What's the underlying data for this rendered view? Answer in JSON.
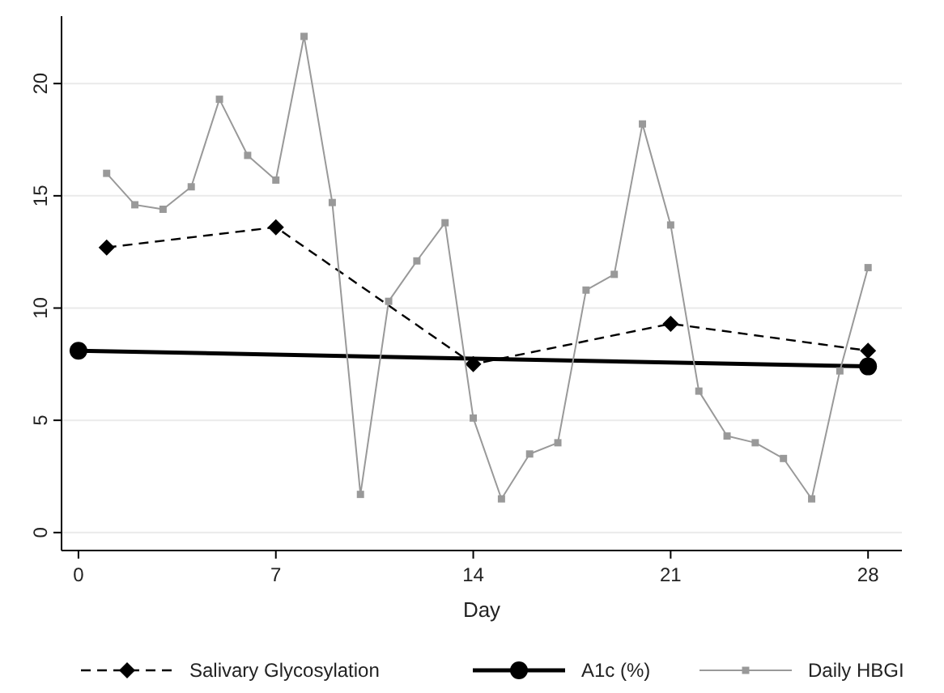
{
  "chart_data": {
    "type": "line",
    "xlabel": "Day",
    "xlim": [
      -0.6,
      29.2
    ],
    "xticks": [
      0,
      7,
      14,
      21,
      28
    ],
    "ylim": [
      -0.8,
      23
    ],
    "yticks": [
      0,
      5,
      10,
      15,
      20
    ],
    "grid": "y",
    "legend": "bottom",
    "series": [
      {
        "name": "Salivary Glycosylation",
        "color": "#000000",
        "marker": "diamond",
        "line_style": "dashed",
        "x": [
          1,
          7,
          14,
          21,
          28
        ],
        "values": [
          12.7,
          13.6,
          7.5,
          9.3,
          8.1
        ]
      },
      {
        "name": "A1c (%)",
        "color": "#000000",
        "marker": "circle",
        "line_style": "solid",
        "x": [
          0,
          28
        ],
        "values": [
          8.1,
          7.4
        ]
      },
      {
        "name": "Daily HBGI",
        "color": "#999999",
        "marker": "square",
        "line_style": "solid",
        "x": [
          1,
          2,
          3,
          4,
          5,
          6,
          7,
          8,
          9,
          10,
          11,
          12,
          13,
          14,
          15,
          16,
          17,
          18,
          19,
          20,
          21,
          22,
          23,
          24,
          25,
          26,
          27,
          28
        ],
        "values": [
          16.0,
          14.6,
          14.4,
          15.4,
          19.3,
          16.8,
          15.7,
          22.1,
          14.7,
          1.7,
          10.3,
          12.1,
          13.8,
          5.1,
          1.5,
          3.5,
          4.0,
          10.8,
          11.5,
          18.2,
          13.7,
          6.3,
          4.3,
          4.0,
          3.3,
          1.5,
          7.2,
          11.8
        ]
      }
    ]
  }
}
